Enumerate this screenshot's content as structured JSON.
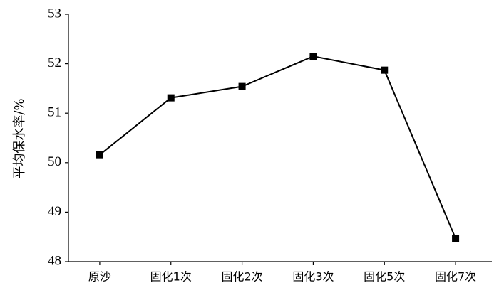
{
  "chart_data": {
    "type": "line",
    "y_label": "平均保水率/%",
    "categories": [
      "原沙",
      "固化1次",
      "固化2次",
      "固化3次",
      "固化5次",
      "固化7次"
    ],
    "values": [
      50.16,
      51.31,
      51.54,
      52.15,
      51.87,
      48.47
    ],
    "color": "#000000",
    "ylim": [
      48,
      53
    ],
    "yticks": [
      48,
      49,
      50,
      51,
      52,
      53
    ],
    "grid": false
  }
}
